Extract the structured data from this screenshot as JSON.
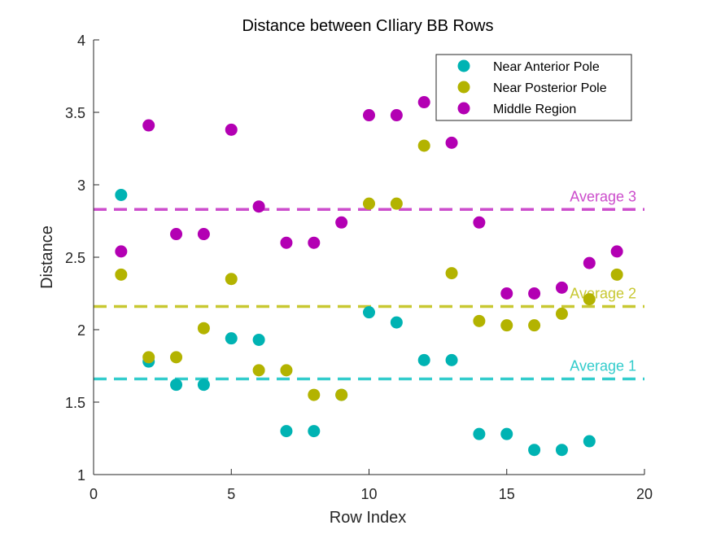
{
  "chart_data": {
    "type": "scatter",
    "title": "Distance between CIliary BB Rows",
    "xlabel": "Row Index",
    "ylabel": "Distance",
    "xlim": [
      0,
      20
    ],
    "ylim": [
      1,
      4
    ],
    "xticks": [
      "0",
      "5",
      "10",
      "15",
      "20"
    ],
    "yticks": [
      "1",
      "1.5",
      "2",
      "2.5",
      "3",
      "3.5",
      "4"
    ],
    "grid": false,
    "legend_position": "top-right",
    "series": [
      {
        "name": "Near Anterior Pole",
        "color": "#00b3b3",
        "points": [
          [
            1,
            2.93
          ],
          [
            2,
            1.78
          ],
          [
            3,
            1.62
          ],
          [
            4,
            1.62
          ],
          [
            5,
            1.94
          ],
          [
            6,
            1.93
          ],
          [
            7,
            1.3
          ],
          [
            8,
            1.3
          ],
          [
            9,
            1.55
          ],
          [
            10,
            2.12
          ],
          [
            11,
            2.05
          ],
          [
            12,
            1.79
          ],
          [
            13,
            1.79
          ],
          [
            14,
            1.28
          ],
          [
            15,
            1.28
          ],
          [
            16,
            1.17
          ],
          [
            17,
            1.17
          ],
          [
            18,
            1.23
          ]
        ]
      },
      {
        "name": "Near Posterior Pole",
        "color": "#b3b300",
        "points": [
          [
            1,
            2.38
          ],
          [
            2,
            1.81
          ],
          [
            3,
            1.81
          ],
          [
            4,
            2.01
          ],
          [
            5,
            2.35
          ],
          [
            6,
            1.72
          ],
          [
            7,
            1.72
          ],
          [
            8,
            1.55
          ],
          [
            9,
            1.55
          ],
          [
            10,
            2.87
          ],
          [
            11,
            2.87
          ],
          [
            12,
            3.27
          ],
          [
            13,
            2.39
          ],
          [
            14,
            2.06
          ],
          [
            15,
            2.03
          ],
          [
            16,
            2.03
          ],
          [
            17,
            2.11
          ],
          [
            18,
            2.21
          ],
          [
            19,
            2.38
          ]
        ]
      },
      {
        "name": "Middle Region",
        "color": "#b300b3",
        "points": [
          [
            1,
            2.54
          ],
          [
            2,
            3.41
          ],
          [
            3,
            2.66
          ],
          [
            4,
            2.66
          ],
          [
            5,
            3.38
          ],
          [
            6,
            2.85
          ],
          [
            7,
            2.6
          ],
          [
            8,
            2.6
          ],
          [
            9,
            2.74
          ],
          [
            10,
            3.48
          ],
          [
            11,
            3.48
          ],
          [
            12,
            3.57
          ],
          [
            13,
            3.29
          ],
          [
            14,
            2.74
          ],
          [
            15,
            2.25
          ],
          [
            16,
            2.25
          ],
          [
            17,
            2.29
          ],
          [
            18,
            2.46
          ],
          [
            19,
            2.54
          ]
        ]
      }
    ],
    "reference_lines": [
      {
        "label": "Average 1",
        "y": 1.66,
        "color": "#33cccc"
      },
      {
        "label": "Average 2",
        "y": 2.16,
        "color": "#c8c832"
      },
      {
        "label": "Average 3",
        "y": 2.83,
        "color": "#cc4dcc"
      }
    ]
  }
}
